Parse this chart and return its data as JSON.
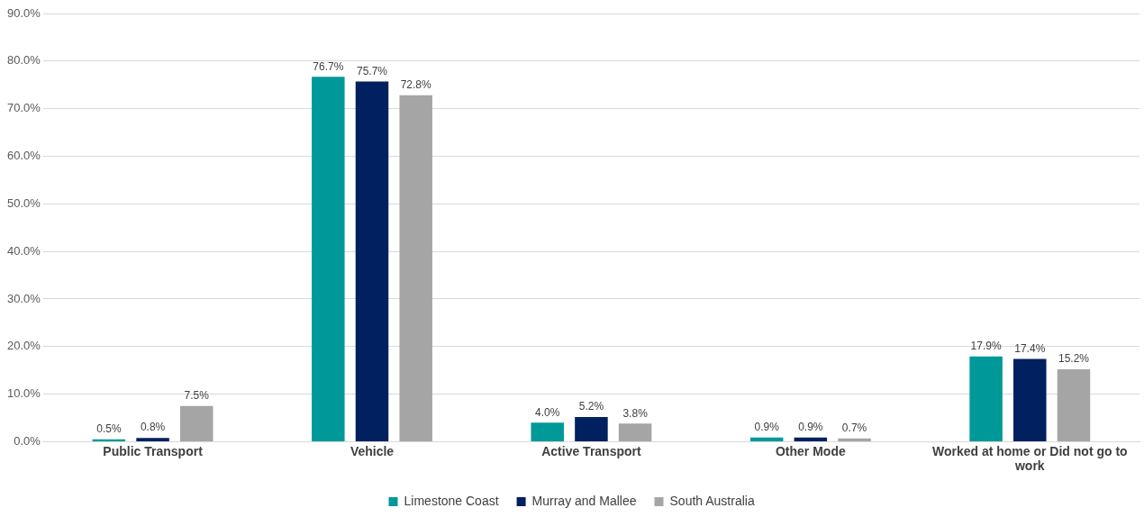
{
  "chart_data": {
    "type": "bar",
    "categories": [
      "Public Transport",
      "Vehicle",
      "Active Transport",
      "Other Mode",
      "Worked at home or Did not go to work"
    ],
    "series": [
      {
        "name": "Limestone Coast",
        "color": "#009999",
        "values": [
          0.5,
          76.7,
          4.0,
          0.9,
          17.9
        ],
        "value_labels": [
          "0.5%",
          "76.7%",
          "4.0%",
          "0.9%",
          "17.9%"
        ]
      },
      {
        "name": "Murray and Mallee",
        "color": "#002060",
        "values": [
          0.8,
          75.7,
          5.2,
          0.9,
          17.4
        ],
        "value_labels": [
          "0.8%",
          "75.7%",
          "5.2%",
          "0.9%",
          "17.4%"
        ]
      },
      {
        "name": "South Australia",
        "color": "#a5a5a5",
        "values": [
          7.5,
          72.8,
          3.8,
          0.7,
          15.2
        ],
        "value_labels": [
          "7.5%",
          "72.8%",
          "3.8%",
          "0.7%",
          "15.2%"
        ]
      }
    ],
    "ylim": [
      0,
      90
    ],
    "yticks": [
      {
        "value": 0,
        "label": "0.0%"
      },
      {
        "value": 10,
        "label": "10.0%"
      },
      {
        "value": 20,
        "label": "20.0%"
      },
      {
        "value": 30,
        "label": "30.0%"
      },
      {
        "value": 40,
        "label": "40.0%"
      },
      {
        "value": 50,
        "label": "50.0%"
      },
      {
        "value": 60,
        "label": "60.0%"
      },
      {
        "value": 70,
        "label": "70.0%"
      },
      {
        "value": 80,
        "label": "80.0%"
      },
      {
        "value": 90,
        "label": "90.0%"
      }
    ],
    "grid": "y",
    "legend": "bottom"
  }
}
